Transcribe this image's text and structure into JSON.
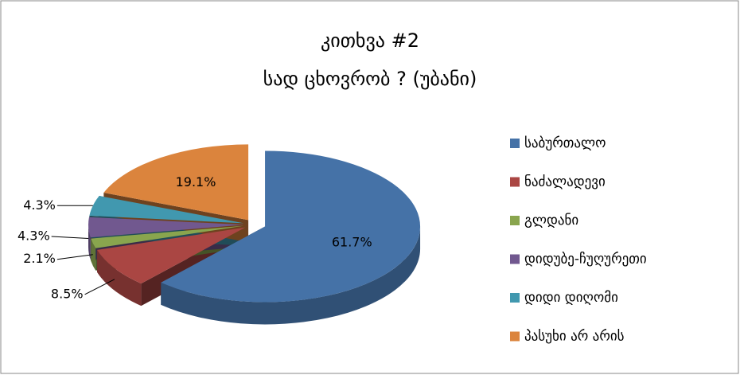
{
  "chart_data": {
    "type": "pie",
    "title": "კითხვა #2",
    "subtitle": "სად ცხოვრობ ?  (უბანი)",
    "categories": [
      "საბურთალო",
      "ნაძალადევი",
      "გლდანი",
      "დიდუბე-ჩუღურეთი",
      "დიდი დიღომი",
      "პასუხი არ არის"
    ],
    "values": [
      61.7,
      8.5,
      2.1,
      4.3,
      4.3,
      19.1
    ],
    "value_labels": [
      "61.7%",
      "8.5%",
      "2.1%",
      "4.3%",
      "4.3%",
      "19.1%"
    ],
    "colors": [
      "#4572a7",
      "#aa4643",
      "#89a54e",
      "#71588f",
      "#4198af",
      "#db843d"
    ],
    "legend": "right"
  }
}
